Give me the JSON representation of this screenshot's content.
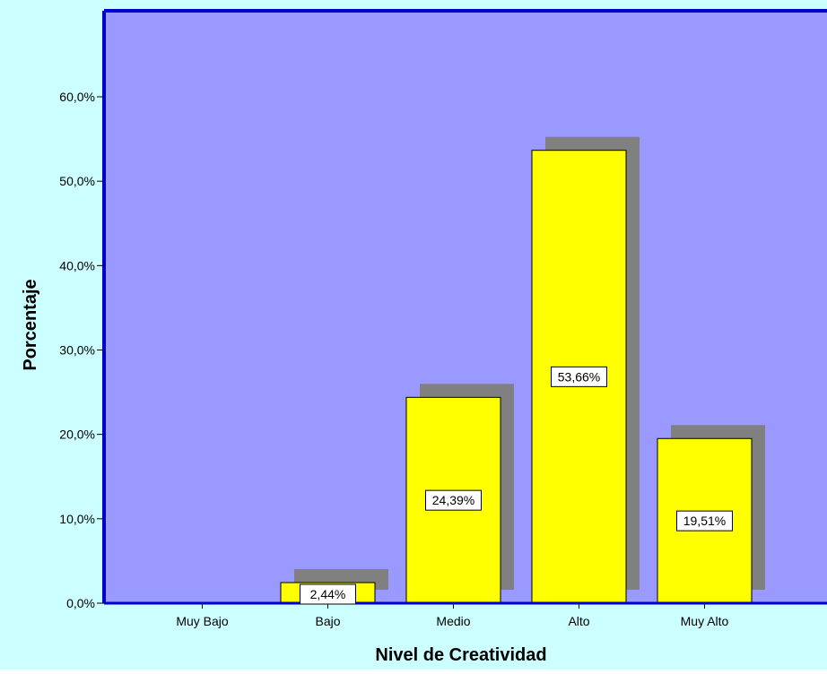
{
  "chart_data": {
    "type": "bar",
    "categories": [
      "Muy Bajo",
      "Bajo",
      "Medio",
      "Alto",
      "Muy Alto"
    ],
    "values": [
      0,
      2.44,
      24.39,
      53.66,
      19.51
    ],
    "value_labels": [
      "",
      "2,44%",
      "24,39%",
      "53,66%",
      "19,51%"
    ],
    "xlabel": "Nivel de Creatividad",
    "ylabel": "Porcentaje",
    "ylim": [
      0,
      60
    ],
    "yticks": [
      {
        "value": 0,
        "label": "0,0%"
      },
      {
        "value": 10,
        "label": "10,0%"
      },
      {
        "value": 20,
        "label": "20,0%"
      },
      {
        "value": 30,
        "label": "30,0%"
      },
      {
        "value": 40,
        "label": "40,0%"
      },
      {
        "value": 50,
        "label": "50,0%"
      },
      {
        "value": 60,
        "label": "60,0%"
      }
    ],
    "grid": false,
    "colors": {
      "background": "#ccffff",
      "plot_area": "#9999ff",
      "frame": "#0000cc",
      "bar": "#ffff00",
      "bar_shadow": "#808080"
    }
  }
}
